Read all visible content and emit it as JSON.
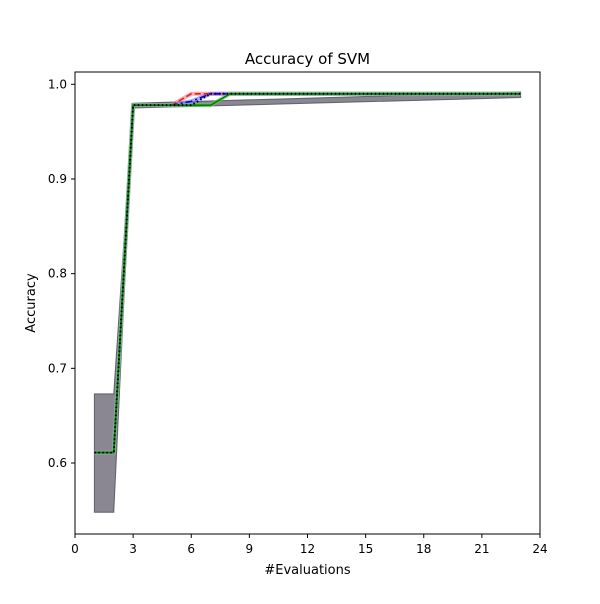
{
  "chart_data": {
    "type": "line",
    "title": "Accuracy of SVM",
    "xlabel": "#Evaluations",
    "ylabel": "Accuracy",
    "xlim": [
      0,
      24
    ],
    "ylim": [
      0.525,
      1.013
    ],
    "x_ticks": [
      0,
      3,
      6,
      9,
      12,
      15,
      18,
      21,
      24
    ],
    "y_ticks": [
      0.6,
      0.7,
      0.8,
      0.9,
      1.0
    ],
    "grid": false,
    "legend": "none",
    "band": {
      "color": "#4b4758",
      "x": [
        1,
        2,
        3,
        23
      ],
      "lower": [
        0.548,
        0.548,
        0.975,
        0.986
      ],
      "upper": [
        0.673,
        0.673,
        0.98,
        0.992
      ]
    },
    "series": [
      {
        "color": "#ff7f7f",
        "style": "shaded",
        "x": [
          1,
          2,
          3,
          4,
          5,
          6,
          7,
          8,
          23
        ],
        "y": [
          0.611,
          0.611,
          0.978,
          0.978,
          0.978,
          0.99,
          0.99,
          0.99,
          0.99
        ]
      },
      {
        "color": "#7f7fff",
        "style": "shaded",
        "x": [
          1,
          2,
          3,
          4,
          5,
          6,
          7,
          8,
          23
        ],
        "y": [
          0.611,
          0.611,
          0.978,
          0.978,
          0.978,
          0.982,
          0.99,
          0.99,
          0.99
        ]
      },
      {
        "color": "#66cc66",
        "style": "shaded",
        "x": [
          1,
          2,
          3,
          4,
          5,
          6,
          7,
          8,
          23
        ],
        "y": [
          0.611,
          0.611,
          0.978,
          0.978,
          0.978,
          0.978,
          0.978,
          0.99,
          0.99
        ]
      },
      {
        "color": "#d62728",
        "style": "dashed",
        "x": [
          1,
          2,
          3,
          4,
          5,
          6,
          7,
          8,
          23
        ],
        "y": [
          0.611,
          0.611,
          0.978,
          0.978,
          0.978,
          0.99,
          0.99,
          0.99,
          0.99
        ]
      },
      {
        "color": "#0000ff",
        "style": "dashdot",
        "x": [
          1,
          2,
          3,
          4,
          5,
          6,
          7,
          8,
          23
        ],
        "y": [
          0.611,
          0.611,
          0.978,
          0.978,
          0.978,
          0.982,
          0.99,
          0.99,
          0.99
        ]
      },
      {
        "color": "#008000",
        "style": "solid",
        "x": [
          1,
          2,
          3,
          4,
          5,
          6,
          7,
          8,
          23
        ],
        "y": [
          0.611,
          0.611,
          0.978,
          0.978,
          0.978,
          0.978,
          0.978,
          0.99,
          0.99
        ]
      },
      {
        "color": "#000000",
        "style": "dotted",
        "x": [
          1,
          2,
          3,
          4,
          5,
          6,
          7,
          8,
          23
        ],
        "y": [
          0.611,
          0.611,
          0.978,
          0.978,
          0.978,
          0.978,
          0.99,
          0.99,
          0.99
        ]
      }
    ]
  }
}
